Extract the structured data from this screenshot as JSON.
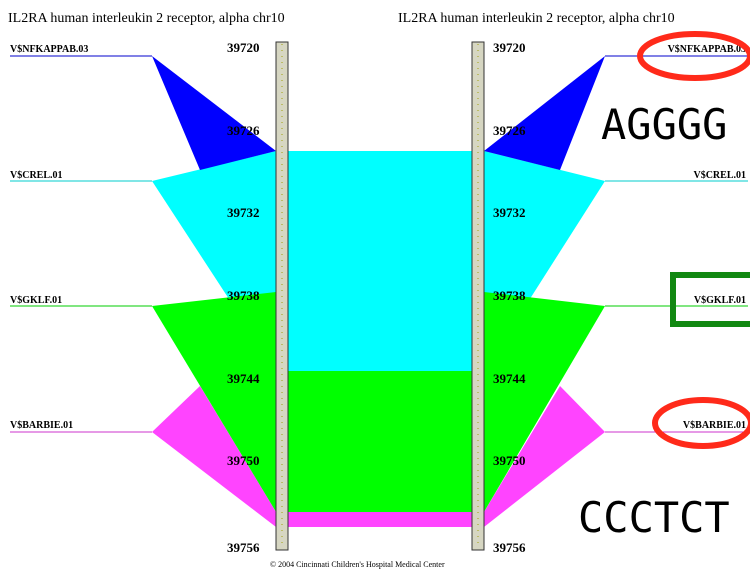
{
  "titles": {
    "left": "IL2RA human interleukin 2 receptor, alpha chr10",
    "right": "IL2RA human interleukin 2 receptor, alpha chr10"
  },
  "axis": {
    "ticks": [
      "39720",
      "39726",
      "39732",
      "39738",
      "39744",
      "39750",
      "39756"
    ]
  },
  "factors": [
    {
      "name": "V$NFKAPPAB.03",
      "color": "#0000ff",
      "line_color": "#0000cc"
    },
    {
      "name": "V$CREL.01",
      "color": "#00ffff",
      "line_color": "#00cccc"
    },
    {
      "name": "V$GKLF.01",
      "color": "#00ff00",
      "line_color": "#00cc00"
    },
    {
      "name": "V$BARBIE.01",
      "color": "#ff44ff",
      "line_color": "#cc33cc"
    }
  ],
  "annotations": {
    "seq_top": "AGGGG",
    "seq_bottom": "CCCTCT",
    "circle_color": "#ff2a1a",
    "box_color": "#118811"
  },
  "footer": {
    "copyright": "© 2004 Cincinnati Children's Hospital Medical Center"
  }
}
